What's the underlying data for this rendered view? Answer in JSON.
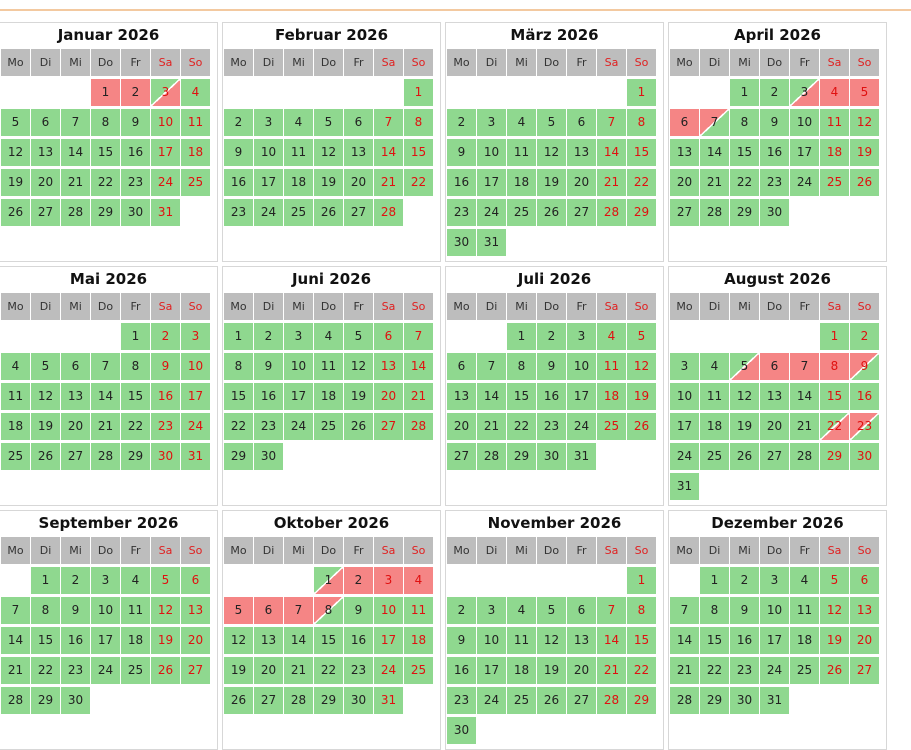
{
  "weekdays": [
    "Mo",
    "Di",
    "Mi",
    "Do",
    "Fr",
    "Sa",
    "So"
  ],
  "colors": {
    "free": "#8fd88f",
    "booked": "#f58585",
    "header": "#bdbdbd",
    "weekend_text": "#e01010"
  },
  "months": [
    {
      "title": "Januar 2026",
      "first_offset": 3,
      "days": 31,
      "booked": [
        1,
        2
      ],
      "arrival": [
        3
      ],
      "departure": [],
      "turnover": []
    },
    {
      "title": "Februar 2026",
      "first_offset": 6,
      "days": 28,
      "booked": [],
      "arrival": [],
      "departure": [],
      "turnover": []
    },
    {
      "title": "März 2026",
      "first_offset": 6,
      "days": 31,
      "booked": [],
      "arrival": [],
      "departure": [],
      "turnover": []
    },
    {
      "title": "April 2026",
      "first_offset": 2,
      "days": 30,
      "booked": [
        4,
        5,
        6
      ],
      "arrival": [
        3
      ],
      "departure": [
        7
      ],
      "turnover": []
    },
    {
      "title": "Mai 2026",
      "first_offset": 4,
      "days": 31,
      "booked": [],
      "arrival": [],
      "departure": [],
      "turnover": []
    },
    {
      "title": "Juni 2026",
      "first_offset": 0,
      "days": 30,
      "booked": [],
      "arrival": [],
      "departure": [],
      "turnover": []
    },
    {
      "title": "Juli 2026",
      "first_offset": 2,
      "days": 31,
      "booked": [],
      "arrival": [],
      "departure": [],
      "turnover": []
    },
    {
      "title": "August 2026",
      "first_offset": 5,
      "days": 31,
      "booked": [
        6,
        7,
        8
      ],
      "arrival": [
        5,
        22
      ],
      "departure": [
        9,
        23
      ],
      "turnover": []
    },
    {
      "title": "September 2026",
      "first_offset": 1,
      "days": 30,
      "booked": [],
      "arrival": [],
      "departure": [],
      "turnover": []
    },
    {
      "title": "Oktober 2026",
      "first_offset": 3,
      "days": 31,
      "booked": [
        2,
        3,
        4,
        5,
        6,
        7
      ],
      "arrival": [
        1
      ],
      "departure": [
        8
      ],
      "turnover": []
    },
    {
      "title": "November 2026",
      "first_offset": 6,
      "days": 30,
      "booked": [],
      "arrival": [],
      "departure": [],
      "turnover": []
    },
    {
      "title": "Dezember 2026",
      "first_offset": 1,
      "days": 31,
      "booked": [],
      "arrival": [],
      "departure": [],
      "turnover": []
    }
  ]
}
